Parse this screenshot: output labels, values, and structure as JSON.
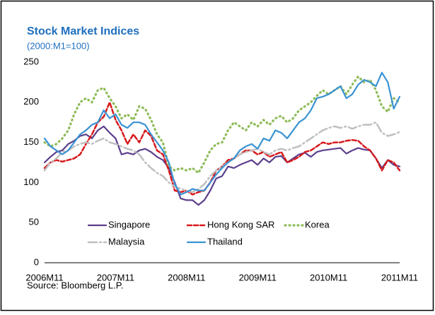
{
  "chart_data": {
    "type": "line",
    "title": "Stock Market Indices",
    "subtitle": "(2000:M1=100)",
    "source": "Source: Bloomberg L.P.",
    "categories": [
      "2006M11",
      null,
      null,
      null,
      null,
      null,
      null,
      null,
      null,
      null,
      null,
      null,
      "2007M11",
      null,
      null,
      null,
      null,
      null,
      null,
      null,
      null,
      null,
      null,
      null,
      "2008M11",
      null,
      null,
      null,
      null,
      null,
      null,
      null,
      null,
      null,
      null,
      null,
      "2009M11",
      null,
      null,
      null,
      null,
      null,
      null,
      null,
      null,
      null,
      null,
      null,
      "2010M11",
      null,
      null,
      null,
      null,
      null,
      null,
      null,
      null,
      null,
      null,
      null,
      "2011M11"
    ],
    "ylim": [
      0,
      250
    ],
    "yticks": [
      0,
      50,
      100,
      150,
      200,
      250
    ],
    "grid": false,
    "legend": "lower center",
    "series": [
      {
        "name": "Singapore",
        "color": "#5b3f8c",
        "dash": "solid",
        "values": [
          125,
          132,
          138,
          140,
          148,
          152,
          158,
          160,
          155,
          165,
          170,
          162,
          155,
          135,
          137,
          135,
          140,
          142,
          138,
          132,
          128,
          118,
          100,
          80,
          78,
          78,
          72,
          78,
          90,
          105,
          108,
          120,
          118,
          122,
          125,
          128,
          122,
          130,
          125,
          132,
          133,
          125,
          130,
          135,
          137,
          132,
          138,
          140,
          141,
          142,
          143,
          136,
          140,
          143,
          141,
          140,
          130,
          118,
          128,
          122,
          120
        ]
      },
      {
        "name": "Hong Kong SAR",
        "color": "#d7191c",
        "dash": "dashed",
        "values": [
          118,
          125,
          128,
          126,
          128,
          130,
          135,
          148,
          160,
          175,
          182,
          200,
          178,
          165,
          148,
          160,
          150,
          165,
          158,
          140,
          135,
          115,
          90,
          88,
          90,
          85,
          88,
          90,
          100,
          115,
          120,
          128,
          130,
          135,
          140,
          140,
          135,
          138,
          132,
          135,
          138,
          125,
          128,
          132,
          138,
          140,
          145,
          150,
          148,
          150,
          150,
          152,
          153,
          152,
          145,
          140,
          130,
          115,
          128,
          125,
          115
        ]
      },
      {
        "name": "Korea",
        "color": "#8fbc5a",
        "dash": "dotted",
        "values": [
          150,
          145,
          148,
          155,
          165,
          185,
          200,
          205,
          200,
          215,
          218,
          205,
          195,
          180,
          185,
          178,
          195,
          192,
          178,
          160,
          150,
          120,
          115,
          118,
          115,
          118,
          112,
          125,
          140,
          148,
          150,
          165,
          175,
          170,
          165,
          175,
          170,
          178,
          172,
          180,
          183,
          175,
          180,
          190,
          195,
          200,
          208,
          215,
          210,
          215,
          220,
          210,
          222,
          232,
          225,
          228,
          215,
          195,
          188,
          205,
          200
        ]
      },
      {
        "name": "Malaysia",
        "color": "#bfbfbf",
        "dash": "dashdot",
        "values": [
          115,
          125,
          130,
          138,
          140,
          145,
          148,
          150,
          148,
          152,
          155,
          150,
          148,
          145,
          142,
          140,
          135,
          125,
          118,
          112,
          108,
          100,
          95,
          92,
          90,
          88,
          92,
          98,
          108,
          115,
          120,
          125,
          130,
          135,
          138,
          140,
          142,
          138,
          135,
          140,
          142,
          140,
          143,
          145,
          150,
          155,
          160,
          165,
          168,
          170,
          168,
          170,
          167,
          170,
          172,
          172,
          175,
          162,
          158,
          160,
          163
        ]
      },
      {
        "name": "Thailand",
        "color": "#3a93d3",
        "dash": "solid",
        "values": [
          155,
          145,
          140,
          135,
          140,
          150,
          160,
          165,
          172,
          175,
          190,
          180,
          185,
          172,
          168,
          175,
          175,
          172,
          160,
          150,
          140,
          125,
          98,
          85,
          88,
          92,
          90,
          90,
          100,
          110,
          118,
          125,
          130,
          140,
          145,
          148,
          142,
          155,
          152,
          165,
          162,
          155,
          165,
          175,
          180,
          190,
          205,
          207,
          210,
          215,
          220,
          205,
          210,
          222,
          228,
          225,
          220,
          237,
          225,
          192,
          207
        ]
      }
    ]
  }
}
